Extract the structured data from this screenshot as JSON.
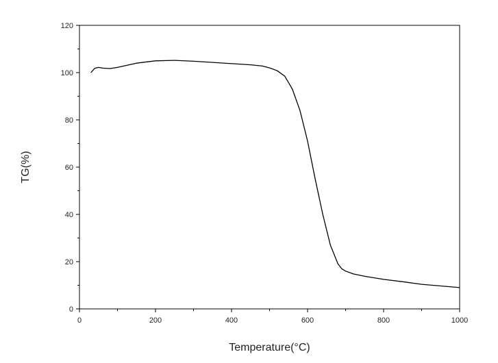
{
  "chart_data": {
    "type": "line",
    "title": "",
    "xlabel": "Temperature(°C)",
    "ylabel": "TG(%)",
    "xlim": [
      0,
      1000
    ],
    "ylim": [
      0,
      120
    ],
    "x_ticks": [
      0,
      200,
      400,
      600,
      800,
      1000
    ],
    "y_ticks": [
      0,
      20,
      40,
      60,
      80,
      100,
      120
    ],
    "grid": false,
    "legend": "none",
    "line_color": "#000000",
    "series": [
      {
        "x": [
          30,
          40,
          50,
          60,
          80,
          100,
          150,
          200,
          250,
          300,
          400,
          450,
          480,
          500,
          520,
          540,
          560,
          580,
          600,
          620,
          640,
          660,
          680,
          690,
          700,
          720,
          750,
          800,
          850,
          900,
          950,
          1000
        ],
        "y": [
          100.0,
          101.8,
          102.2,
          101.9,
          101.7,
          102.2,
          104.0,
          105.0,
          105.2,
          104.8,
          103.8,
          103.3,
          102.8,
          102.0,
          100.8,
          98.5,
          93.0,
          84.0,
          71.0,
          55.0,
          40.0,
          27.0,
          19.0,
          17.0,
          16.0,
          14.8,
          13.8,
          12.5,
          11.5,
          10.4,
          9.7,
          9.0
        ]
      }
    ]
  }
}
